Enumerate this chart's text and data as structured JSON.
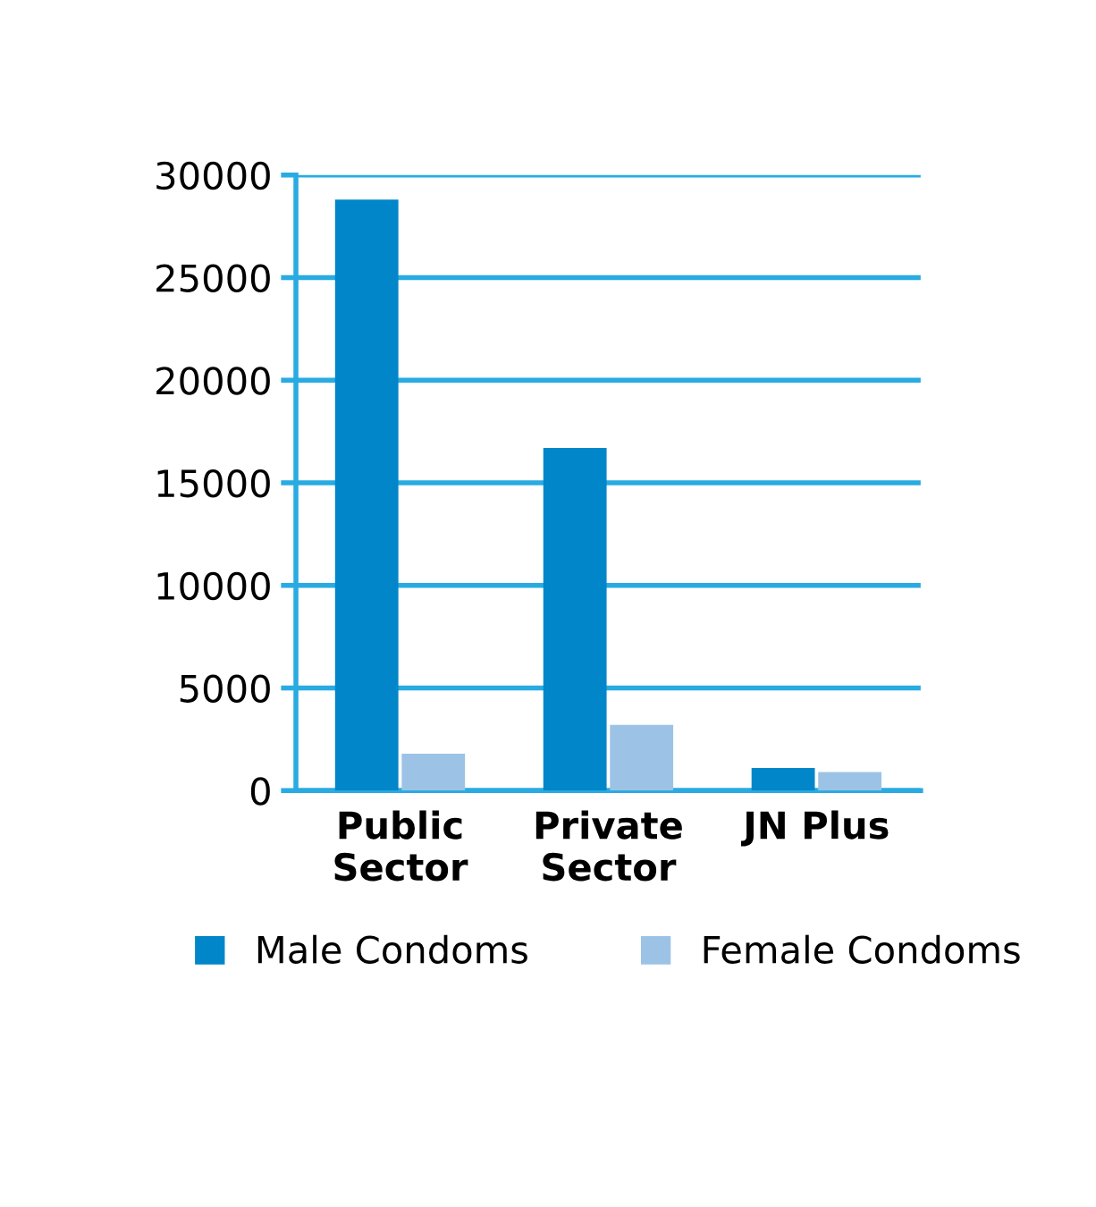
{
  "chart_data": {
    "type": "bar",
    "categories": [
      "Public\nSector",
      "Private\nSector",
      "JN Plus"
    ],
    "series": [
      {
        "name": "Male Condoms",
        "color": "#0086c9",
        "values": [
          28800,
          16700,
          1100
        ]
      },
      {
        "name": "Female Condoms",
        "color": "#9cc3e6",
        "values": [
          1800,
          3200,
          900
        ]
      }
    ],
    "ylim": [
      0,
      30000
    ],
    "yticks": [
      0,
      5000,
      10000,
      15000,
      20000,
      25000,
      30000
    ],
    "grid": "y",
    "legend": "bottom"
  }
}
